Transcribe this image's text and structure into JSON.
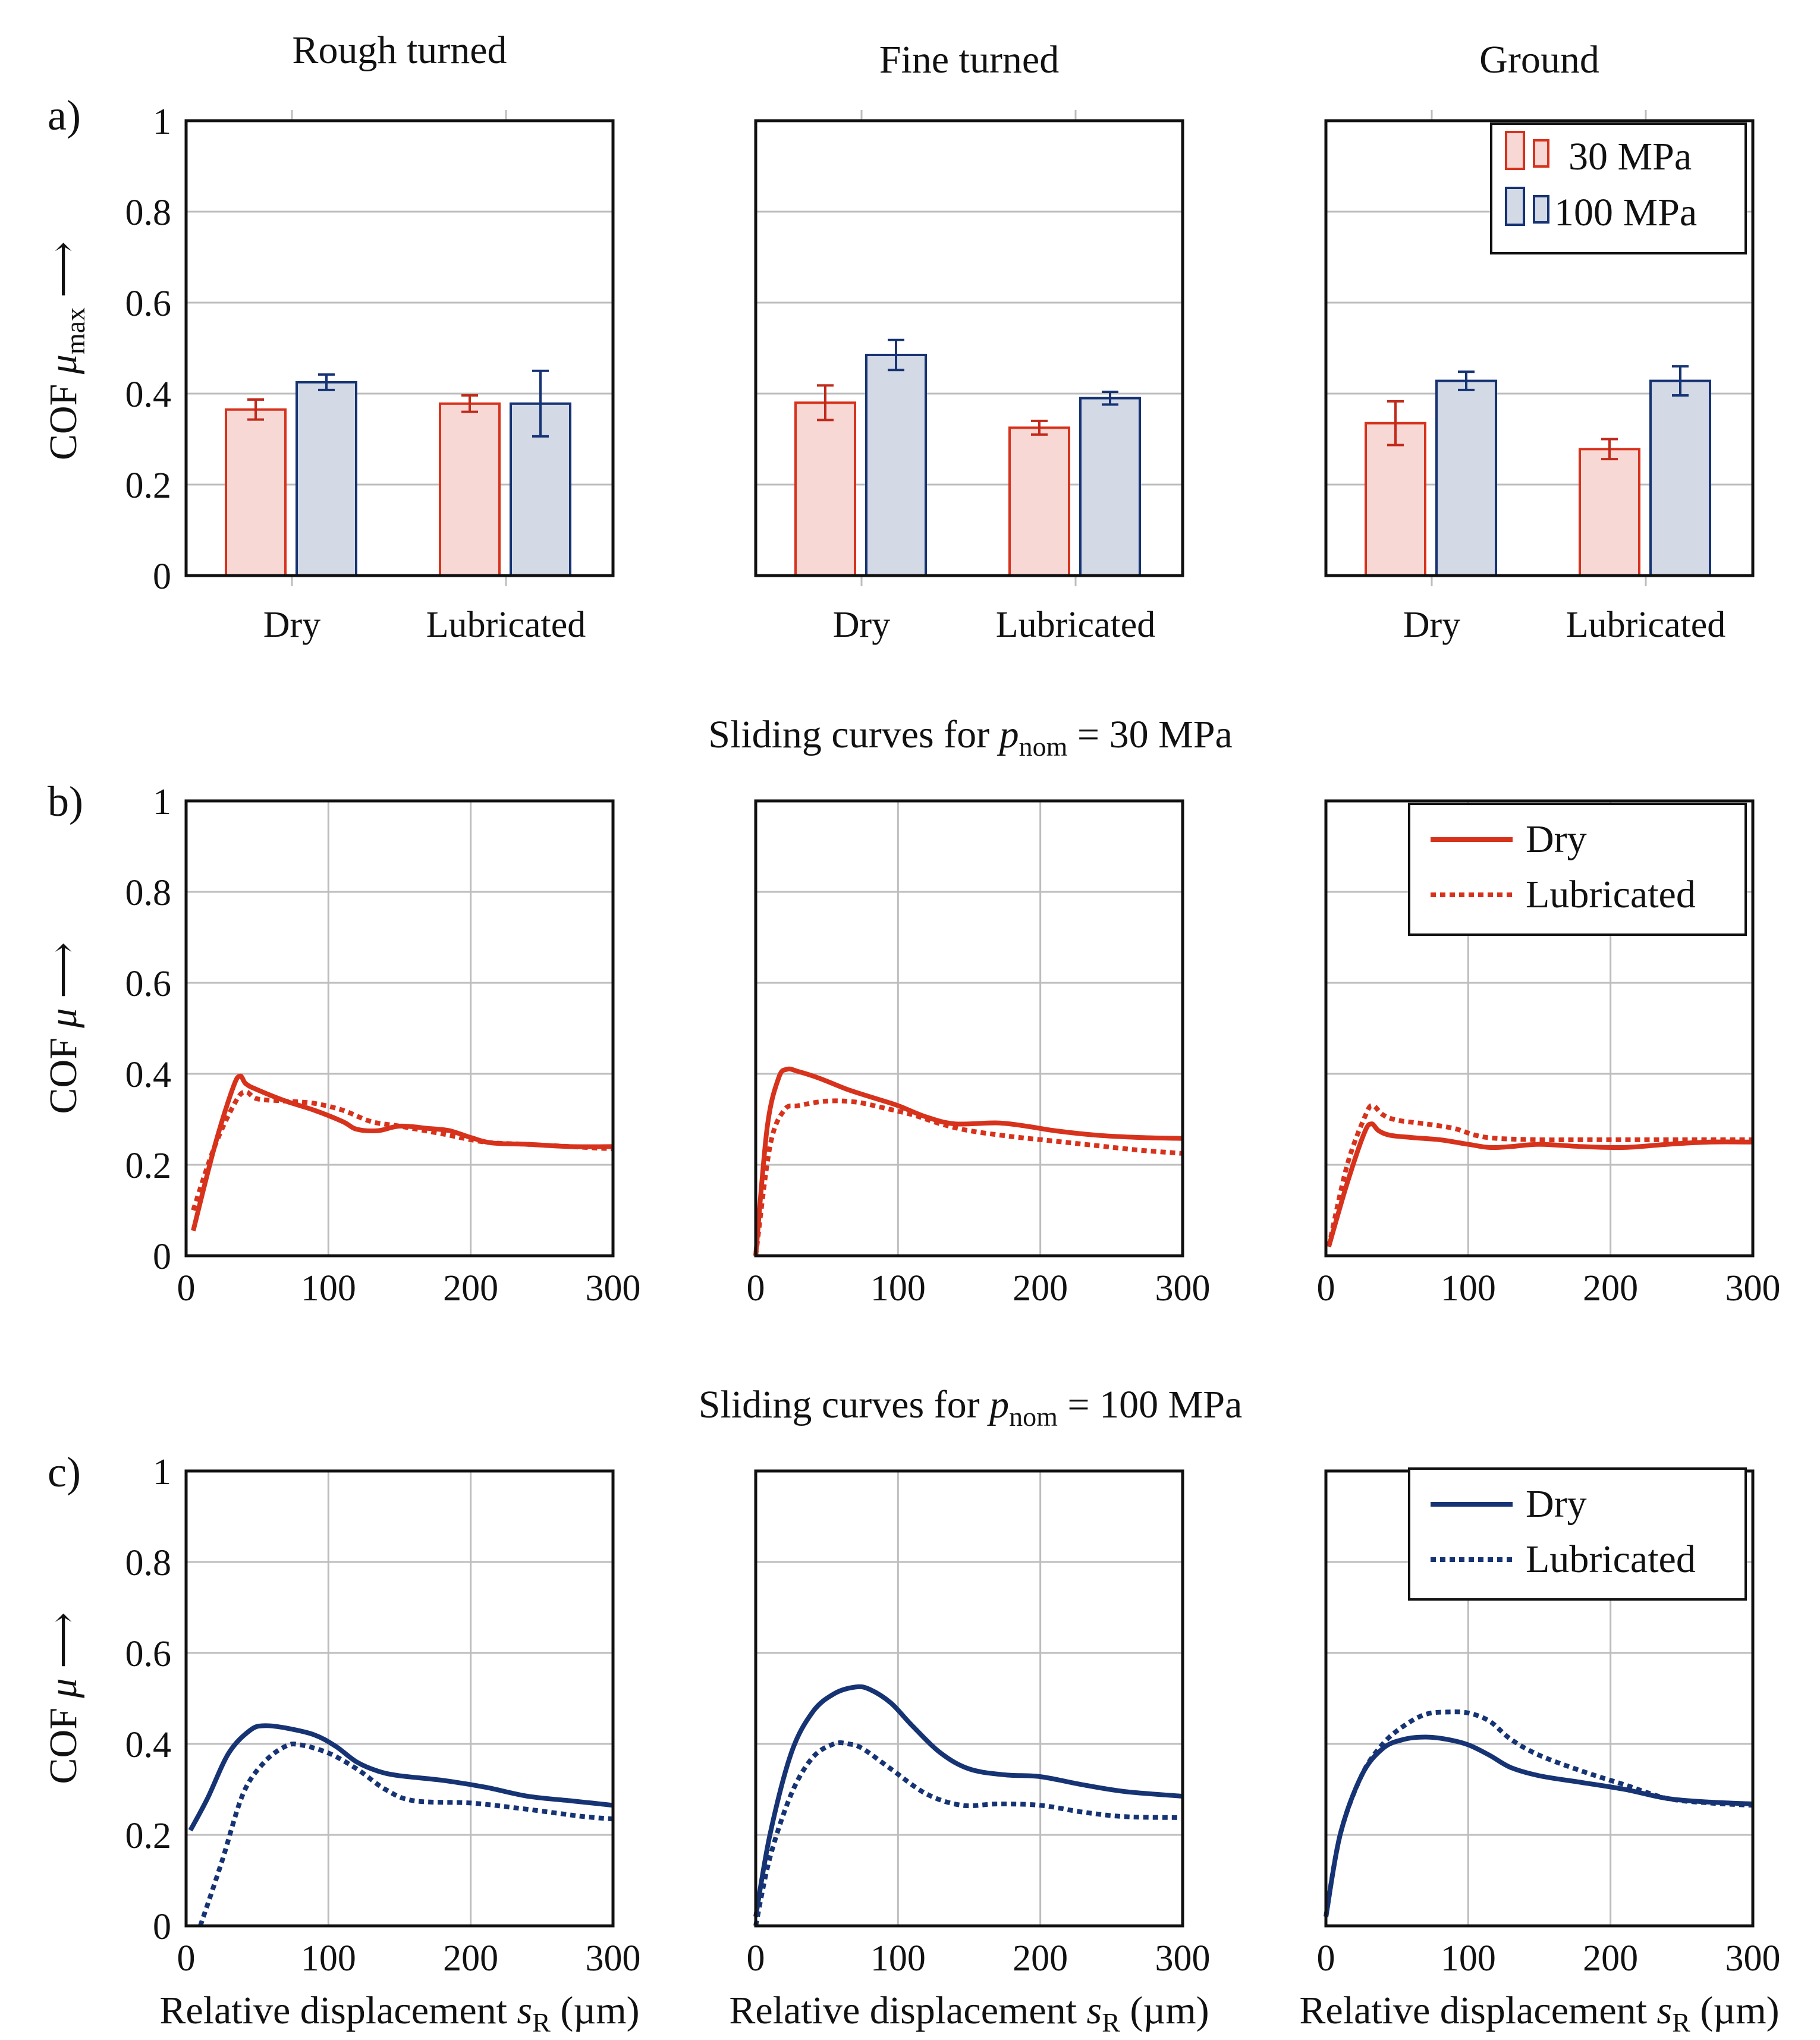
{
  "colors": {
    "red": "#D7321C",
    "red_fill": "#F8D8D4",
    "blue": "#163374",
    "blue_fill": "#D3DAE6",
    "err_red": "#C02A1B",
    "err_blue": "#163374",
    "grid": "#BDBDBD",
    "axis": "#111111"
  },
  "columns": {
    "titles": [
      "Rough turned",
      "Fine turned",
      "Ground"
    ]
  },
  "rows": {
    "a": {
      "panel_label": "a)",
      "ylabel": "COF μmax ⟶",
      "ylabel_main": "COF ",
      "ylabel_mu": "μ",
      "ylabel_sub": "max",
      "ylabel_arrow": " ⟶"
    },
    "b": {
      "panel_label": "b)",
      "title_prefix": "Sliding curves for ",
      "title_p": "p",
      "title_sub": "nom",
      "title_suffix": " = 30 MPa",
      "ylabel_main": "COF ",
      "ylabel_mu": "μ",
      "ylabel_arrow": " ⟶"
    },
    "c": {
      "panel_label": "c)",
      "title_prefix": "Sliding curves for ",
      "title_p": "p",
      "title_sub": "nom",
      "title_suffix": " = 100 MPa",
      "ylabel_main": "COF ",
      "ylabel_mu": "μ",
      "ylabel_arrow": " ⟶"
    }
  },
  "xlabel": {
    "prefix": "Relative displacement ",
    "s": "s",
    "sub": "R",
    "suffix": " (µm)"
  },
  "legends": {
    "bars": [
      "30 MPa",
      "100 MPa"
    ],
    "lines": [
      "Dry",
      "Lubricated"
    ]
  },
  "chart_data": [
    {
      "type": "bar",
      "row": "a",
      "title": "Rough turned",
      "categories": [
        "Dry",
        "Lubricated"
      ],
      "ylim": [
        0,
        1
      ],
      "yticks": [
        0,
        0.2,
        0.4,
        0.6,
        0.8,
        1
      ],
      "series": [
        {
          "name": "30 MPa",
          "values": [
            0.365,
            0.378
          ],
          "errors": [
            0.022,
            0.018
          ]
        },
        {
          "name": "100 MPa",
          "values": [
            0.425,
            0.378
          ],
          "errors": [
            0.017,
            0.072
          ]
        }
      ]
    },
    {
      "type": "bar",
      "row": "a",
      "title": "Fine turned",
      "categories": [
        "Dry",
        "Lubricated"
      ],
      "ylim": [
        0,
        1
      ],
      "series": [
        {
          "name": "30 MPa",
          "values": [
            0.38,
            0.325
          ],
          "errors": [
            0.038,
            0.015
          ]
        },
        {
          "name": "100 MPa",
          "values": [
            0.485,
            0.39
          ],
          "errors": [
            0.033,
            0.014
          ]
        }
      ]
    },
    {
      "type": "bar",
      "row": "a",
      "title": "Ground",
      "categories": [
        "Dry",
        "Lubricated"
      ],
      "ylim": [
        0,
        1
      ],
      "legend": "top-right",
      "series": [
        {
          "name": "30 MPa",
          "values": [
            0.335,
            0.278
          ],
          "errors": [
            0.048,
            0.022
          ]
        },
        {
          "name": "100 MPa",
          "values": [
            0.428,
            0.428
          ],
          "errors": [
            0.02,
            0.032
          ]
        }
      ]
    },
    {
      "type": "line",
      "row": "b",
      "title": "Rough turned",
      "xlim": [
        0,
        300
      ],
      "ylim": [
        0,
        1
      ],
      "xticks": [
        0,
        100,
        200,
        300
      ],
      "yticks": [
        0,
        0.2,
        0.4,
        0.6,
        0.8,
        1
      ],
      "grid": true,
      "series": [
        {
          "name": "Dry",
          "style": "solid",
          "color": "red",
          "x": [
            5,
            20,
            33,
            38,
            42,
            50,
            70,
            90,
            110,
            120,
            135,
            150,
            170,
            185,
            200,
            215,
            240,
            270,
            300
          ],
          "y": [
            0.055,
            0.24,
            0.37,
            0.395,
            0.378,
            0.365,
            0.34,
            0.32,
            0.295,
            0.278,
            0.275,
            0.285,
            0.28,
            0.275,
            0.26,
            0.248,
            0.245,
            0.24,
            0.24
          ]
        },
        {
          "name": "Lubricated",
          "style": "dotted",
          "color": "red",
          "x": [
            5,
            20,
            35,
            42,
            50,
            70,
            90,
            110,
            130,
            150,
            180,
            210,
            240,
            270,
            300
          ],
          "y": [
            0.1,
            0.24,
            0.34,
            0.36,
            0.345,
            0.34,
            0.335,
            0.32,
            0.295,
            0.285,
            0.268,
            0.25,
            0.245,
            0.24,
            0.235
          ]
        }
      ]
    },
    {
      "type": "line",
      "row": "b",
      "title": "Fine turned",
      "xlim": [
        0,
        300
      ],
      "ylim": [
        0,
        1
      ],
      "grid": true,
      "series": [
        {
          "name": "Dry",
          "style": "solid",
          "color": "red",
          "x": [
            0,
            8,
            16,
            22,
            30,
            45,
            65,
            85,
            100,
            120,
            140,
            170,
            190,
            210,
            240,
            270,
            300
          ],
          "y": [
            0.0,
            0.28,
            0.39,
            0.41,
            0.405,
            0.39,
            0.365,
            0.345,
            0.33,
            0.305,
            0.29,
            0.292,
            0.285,
            0.275,
            0.265,
            0.26,
            0.258
          ]
        },
        {
          "name": "Lubricated",
          "style": "dotted",
          "color": "red",
          "x": [
            0,
            10,
            20,
            30,
            50,
            70,
            90,
            110,
            130,
            150,
            180,
            210,
            240,
            270,
            300
          ],
          "y": [
            0.0,
            0.24,
            0.32,
            0.33,
            0.34,
            0.338,
            0.325,
            0.31,
            0.29,
            0.275,
            0.262,
            0.252,
            0.242,
            0.232,
            0.225
          ]
        }
      ]
    },
    {
      "type": "line",
      "row": "b",
      "title": "Ground",
      "xlim": [
        0,
        300
      ],
      "ylim": [
        0,
        1
      ],
      "grid": true,
      "legend": "top-right",
      "series": [
        {
          "name": "Dry",
          "style": "solid",
          "color": "red",
          "x": [
            2,
            15,
            27,
            32,
            37,
            45,
            60,
            80,
            100,
            115,
            130,
            150,
            180,
            210,
            240,
            270,
            300
          ],
          "y": [
            0.02,
            0.16,
            0.27,
            0.29,
            0.275,
            0.265,
            0.26,
            0.255,
            0.245,
            0.238,
            0.24,
            0.245,
            0.24,
            0.238,
            0.245,
            0.25,
            0.25
          ]
        },
        {
          "name": "Lubricated",
          "style": "dotted",
          "color": "red",
          "x": [
            2,
            15,
            28,
            33,
            40,
            50,
            70,
            90,
            105,
            120,
            150,
            180,
            210,
            240,
            270,
            300
          ],
          "y": [
            0.02,
            0.2,
            0.31,
            0.33,
            0.31,
            0.298,
            0.29,
            0.28,
            0.265,
            0.258,
            0.255,
            0.255,
            0.255,
            0.255,
            0.255,
            0.255
          ]
        }
      ]
    },
    {
      "type": "line",
      "row": "c",
      "title": "Rough turned",
      "xlim": [
        0,
        300
      ],
      "ylim": [
        0,
        1
      ],
      "xticks": [
        0,
        100,
        200,
        300
      ],
      "yticks": [
        0,
        0.2,
        0.4,
        0.6,
        0.8,
        1
      ],
      "grid": true,
      "series": [
        {
          "name": "Dry",
          "style": "solid",
          "color": "blue",
          "x": [
            3,
            15,
            30,
            45,
            55,
            70,
            90,
            105,
            120,
            135,
            150,
            180,
            210,
            240,
            270,
            285,
            300
          ],
          "y": [
            0.21,
            0.28,
            0.38,
            0.43,
            0.44,
            0.435,
            0.42,
            0.395,
            0.36,
            0.34,
            0.33,
            0.32,
            0.305,
            0.285,
            0.275,
            0.27,
            0.265
          ]
        },
        {
          "name": "Lubricated",
          "style": "dotted",
          "color": "blue",
          "x": [
            10,
            25,
            40,
            55,
            70,
            80,
            100,
            120,
            140,
            160,
            200,
            230,
            260,
            280,
            300
          ],
          "y": [
            0.0,
            0.14,
            0.29,
            0.36,
            0.395,
            0.398,
            0.38,
            0.345,
            0.3,
            0.275,
            0.27,
            0.26,
            0.248,
            0.24,
            0.235
          ]
        }
      ]
    },
    {
      "type": "line",
      "row": "c",
      "title": "Fine turned",
      "xlim": [
        0,
        300
      ],
      "ylim": [
        0,
        1
      ],
      "grid": true,
      "series": [
        {
          "name": "Dry",
          "style": "solid",
          "color": "blue",
          "x": [
            0,
            10,
            25,
            40,
            55,
            70,
            80,
            95,
            110,
            130,
            150,
            175,
            200,
            230,
            260,
            300
          ],
          "y": [
            0.02,
            0.2,
            0.38,
            0.47,
            0.51,
            0.525,
            0.52,
            0.49,
            0.44,
            0.38,
            0.345,
            0.332,
            0.328,
            0.31,
            0.295,
            0.285
          ]
        },
        {
          "name": "Lubricated",
          "style": "dotted",
          "color": "blue",
          "x": [
            0,
            10,
            25,
            40,
            55,
            65,
            75,
            95,
            120,
            145,
            170,
            200,
            230,
            260,
            300
          ],
          "y": [
            0.0,
            0.15,
            0.29,
            0.37,
            0.4,
            0.4,
            0.39,
            0.345,
            0.29,
            0.265,
            0.268,
            0.265,
            0.25,
            0.24,
            0.238
          ]
        }
      ]
    },
    {
      "type": "line",
      "row": "c",
      "title": "Ground",
      "xlim": [
        0,
        300
      ],
      "ylim": [
        0,
        1
      ],
      "grid": true,
      "legend": "top-right",
      "series": [
        {
          "name": "Dry",
          "style": "solid",
          "color": "blue",
          "x": [
            0,
            10,
            25,
            40,
            55,
            70,
            85,
            100,
            115,
            130,
            150,
            180,
            210,
            240,
            270,
            300
          ],
          "y": [
            0.02,
            0.2,
            0.33,
            0.39,
            0.41,
            0.415,
            0.41,
            0.398,
            0.375,
            0.348,
            0.33,
            0.315,
            0.3,
            0.28,
            0.272,
            0.268
          ]
        },
        {
          "name": "Lubricated",
          "style": "dotted",
          "color": "blue",
          "x": [
            0,
            10,
            25,
            40,
            55,
            70,
            85,
            100,
            115,
            130,
            150,
            180,
            210,
            240,
            270,
            300
          ],
          "y": [
            0.02,
            0.2,
            0.33,
            0.4,
            0.44,
            0.465,
            0.47,
            0.468,
            0.45,
            0.41,
            0.375,
            0.34,
            0.31,
            0.28,
            0.27,
            0.265
          ]
        }
      ]
    }
  ]
}
